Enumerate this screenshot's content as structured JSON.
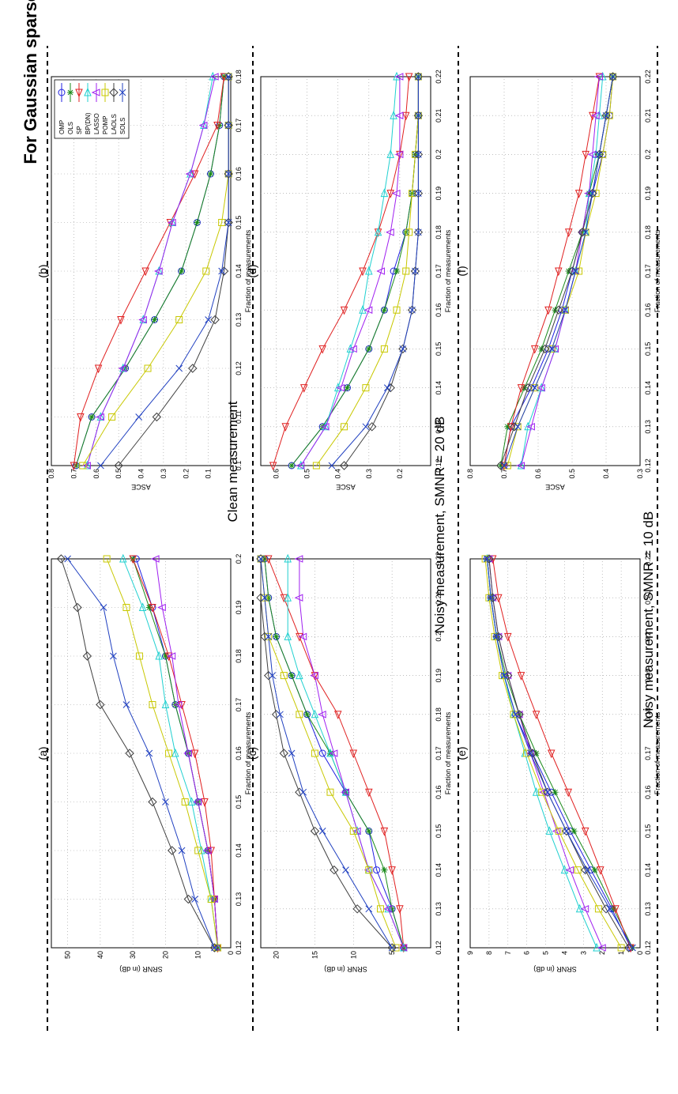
{
  "figure": {
    "title": "For Gaussian sparse signal",
    "row_labels": [
      "Clean measurement",
      "Noisy measurement, SMNR = 20 dB",
      "Noisy measurement, SMNR = 10 dB"
    ],
    "legend": [
      "OMP",
      "OLS",
      "SP",
      "BP(DN)",
      "LASSO",
      "POMP",
      "LAOLS",
      "SOLS"
    ]
  },
  "colors": {
    "OMP": "#2020e0",
    "OLS": "#1a8a1a",
    "SP": "#e02020",
    "BP(DN)": "#20d0d0",
    "LASSO": "#a020f0",
    "POMP": "#c8c800",
    "LAOLS": "#404040",
    "SOLS": "#2040c0"
  },
  "chart_data": [
    {
      "id": "a",
      "label": "(a)",
      "type": "line",
      "xlabel": "Fraction of measurements",
      "ylabel": "SRNR (in dB)",
      "x": [
        0.12,
        0.13,
        0.14,
        0.15,
        0.16,
        0.17,
        0.18,
        0.19,
        0.2
      ],
      "xticks": [
        "0.12",
        "0.13",
        "0.14",
        "0.15",
        "0.16",
        "0.17",
        "0.18",
        "0.19",
        "0.2"
      ],
      "ylim": [
        0,
        55
      ],
      "yticks": [
        "0",
        "10",
        "20",
        "30",
        "40",
        "50"
      ],
      "ytick_values": [
        0,
        10,
        20,
        30,
        40,
        50
      ],
      "series": [
        {
          "name": "OMP",
          "values": [
            4,
            5,
            7,
            10,
            13,
            17,
            20,
            24,
            29
          ]
        },
        {
          "name": "OLS",
          "values": [
            4,
            5,
            7,
            10,
            13,
            17,
            20,
            25,
            30
          ]
        },
        {
          "name": "SP",
          "values": [
            4,
            5,
            6,
            8,
            11,
            15,
            19,
            24,
            30
          ]
        },
        {
          "name": "BP(DN)",
          "values": [
            4,
            6,
            9,
            12,
            17,
            20,
            22,
            27,
            33
          ]
        },
        {
          "name": "LASSO",
          "values": [
            4,
            5,
            7,
            10,
            13,
            16,
            18,
            21,
            23
          ]
        },
        {
          "name": "POMP",
          "values": [
            4,
            6,
            10,
            14,
            19,
            24,
            28,
            32,
            38
          ]
        },
        {
          "name": "LAOLS",
          "values": [
            5,
            13,
            18,
            24,
            31,
            40,
            44,
            47,
            52
          ]
        },
        {
          "name": "SOLS",
          "values": [
            5,
            11,
            15,
            20,
            25,
            32,
            36,
            39,
            50
          ]
        }
      ]
    },
    {
      "id": "b",
      "label": "(b)",
      "type": "line",
      "xlabel": "Fraction of measurements",
      "ylabel": "ASCE",
      "x": [
        0.1,
        0.11,
        0.12,
        0.13,
        0.14,
        0.15,
        0.16,
        0.17,
        0.18
      ],
      "xticks": [
        "0.1",
        "0.11",
        "0.12",
        "0.13",
        "0.14",
        "0.15",
        "0.16",
        "0.17",
        "0.18"
      ],
      "ylim": [
        0,
        0.8
      ],
      "yticks": [
        "0.1",
        "0.2",
        "0.3",
        "0.4",
        "0.5",
        "0.6",
        "0.7",
        "0.8"
      ],
      "ytick_values": [
        0.1,
        0.2,
        0.3,
        0.4,
        0.5,
        0.6,
        0.7,
        0.8
      ],
      "series": [
        {
          "name": "OMP",
          "values": [
            0.69,
            0.62,
            0.47,
            0.34,
            0.22,
            0.15,
            0.09,
            0.05,
            0.03
          ]
        },
        {
          "name": "OLS",
          "values": [
            0.69,
            0.62,
            0.47,
            0.34,
            0.22,
            0.15,
            0.09,
            0.05,
            0.03
          ]
        },
        {
          "name": "SP",
          "values": [
            0.7,
            0.67,
            0.59,
            0.49,
            0.38,
            0.27,
            0.16,
            0.06,
            0.03
          ]
        },
        {
          "name": "BP(DN)",
          "values": [
            0.64,
            0.58,
            0.48,
            0.39,
            0.32,
            0.26,
            0.18,
            0.12,
            0.08
          ]
        },
        {
          "name": "LASSO",
          "values": [
            0.64,
            0.58,
            0.48,
            0.39,
            0.32,
            0.26,
            0.18,
            0.12,
            0.07
          ]
        },
        {
          "name": "POMP",
          "values": [
            0.66,
            0.53,
            0.37,
            0.23,
            0.11,
            0.04,
            0.01,
            0.01,
            0.01
          ]
        },
        {
          "name": "LAOLS",
          "values": [
            0.5,
            0.33,
            0.17,
            0.07,
            0.03,
            0.01,
            0.01,
            0.01,
            0.01
          ]
        },
        {
          "name": "SOLS",
          "values": [
            0.58,
            0.41,
            0.23,
            0.1,
            0.04,
            0.01,
            0.01,
            0.01,
            0.01
          ]
        }
      ]
    },
    {
      "id": "c",
      "label": "(c)",
      "type": "line",
      "xlabel": "Fraction of measurements",
      "ylabel": "SRNR (in dB)",
      "x": [
        0.12,
        0.13,
        0.14,
        0.15,
        0.16,
        0.17,
        0.18,
        0.19,
        0.2,
        0.21,
        0.22
      ],
      "xticks": [
        "0.12",
        "0.13",
        "0.14",
        "0.15",
        "0.16",
        "0.17",
        "0.18",
        "0.19",
        "0.2",
        "0.21",
        "0.22"
      ],
      "ylim": [
        0,
        22
      ],
      "yticks": [
        "5",
        "10",
        "15",
        "20"
      ],
      "ytick_values": [
        5,
        10,
        15,
        20
      ],
      "series": [
        {
          "name": "OMP",
          "values": [
            3.5,
            5,
            7,
            8,
            11,
            14,
            16,
            18,
            20,
            21,
            21.5
          ]
        },
        {
          "name": "OLS",
          "values": [
            3.5,
            5,
            6,
            8,
            11,
            13,
            16,
            18,
            20,
            21,
            21.5
          ]
        },
        {
          "name": "SP",
          "values": [
            3.5,
            4,
            5,
            6,
            8,
            10,
            12,
            15,
            17,
            19,
            21
          ]
        },
        {
          "name": "BP(DN)",
          "values": [
            3.5,
            5.5,
            8,
            9.5,
            11,
            13,
            15,
            17,
            18.5,
            18.5,
            18.5
          ]
        },
        {
          "name": "LASSO",
          "values": [
            3.5,
            5.5,
            8,
            9.5,
            11,
            12.5,
            14,
            15,
            16.5,
            17,
            17
          ]
        },
        {
          "name": "POMP",
          "values": [
            4.5,
            6.5,
            8,
            10,
            13,
            15,
            17,
            19,
            21,
            21.5,
            22
          ]
        },
        {
          "name": "LAOLS",
          "values": [
            5,
            9.5,
            12.5,
            15,
            17,
            19,
            20,
            21,
            21.5,
            22,
            22
          ]
        },
        {
          "name": "SOLS",
          "values": [
            5,
            8,
            11,
            14,
            16.5,
            18,
            19.5,
            20.5,
            21,
            21.5,
            22
          ]
        }
      ]
    },
    {
      "id": "d",
      "label": "(d)",
      "type": "line",
      "xlabel": "Fraction of measurements",
      "ylabel": "ASCE",
      "x": [
        0.12,
        0.13,
        0.14,
        0.15,
        0.16,
        0.17,
        0.18,
        0.19,
        0.2,
        0.21,
        0.22
      ],
      "xticks": [
        "0.12",
        "0.13",
        "0.14",
        "0.15",
        "0.16",
        "0.17",
        "0.18",
        "0.19",
        "0.2",
        "0.21",
        "0.22"
      ],
      "ylim": [
        0.1,
        0.65
      ],
      "yticks": [
        "0.2",
        "0.3",
        "0.4",
        "0.5",
        "0.6"
      ],
      "ytick_values": [
        0.2,
        0.3,
        0.4,
        0.5,
        0.6
      ],
      "series": [
        {
          "name": "OMP",
          "values": [
            0.55,
            0.45,
            0.37,
            0.3,
            0.25,
            0.22,
            0.18,
            0.16,
            0.15,
            0.14,
            0.14
          ]
        },
        {
          "name": "OLS",
          "values": [
            0.55,
            0.45,
            0.37,
            0.3,
            0.25,
            0.21,
            0.18,
            0.16,
            0.15,
            0.14,
            0.14
          ]
        },
        {
          "name": "SP",
          "values": [
            0.61,
            0.57,
            0.51,
            0.45,
            0.38,
            0.32,
            0.27,
            0.23,
            0.2,
            0.18,
            0.17
          ]
        },
        {
          "name": "BP(DN)",
          "values": [
            0.52,
            0.44,
            0.4,
            0.36,
            0.32,
            0.3,
            0.27,
            0.25,
            0.23,
            0.22,
            0.21
          ]
        },
        {
          "name": "LASSO",
          "values": [
            0.52,
            0.44,
            0.39,
            0.35,
            0.3,
            0.26,
            0.23,
            0.21,
            0.2,
            0.2,
            0.2
          ]
        },
        {
          "name": "POMP",
          "values": [
            0.47,
            0.38,
            0.31,
            0.25,
            0.21,
            0.18,
            0.17,
            0.16,
            0.15,
            0.14,
            0.14
          ]
        },
        {
          "name": "LAOLS",
          "values": [
            0.38,
            0.29,
            0.23,
            0.19,
            0.16,
            0.15,
            0.14,
            0.14,
            0.14,
            0.14,
            0.14
          ]
        },
        {
          "name": "SOLS",
          "values": [
            0.42,
            0.31,
            0.24,
            0.19,
            0.16,
            0.15,
            0.14,
            0.14,
            0.14,
            0.14,
            0.14
          ]
        }
      ]
    },
    {
      "id": "e",
      "label": "(e)",
      "type": "line",
      "xlabel": "Fraction of measurements",
      "ylabel": "SRNR (in dB)",
      "x": [
        0.12,
        0.13,
        0.14,
        0.15,
        0.16,
        0.17,
        0.18,
        0.19,
        0.2,
        0.21,
        0.22
      ],
      "xticks": [
        "0.12",
        "0.13",
        "0.14",
        "0.15",
        "0.16",
        "0.17",
        "0.18",
        "0.19",
        "0.2",
        "0.21",
        "0.22"
      ],
      "ylim": [
        0,
        9
      ],
      "yticks": [
        "0",
        "1",
        "2",
        "3",
        "4",
        "5",
        "6",
        "7",
        "8",
        "9"
      ],
      "ytick_values": [
        0,
        1,
        2,
        3,
        4,
        5,
        6,
        7,
        8,
        9
      ],
      "series": [
        {
          "name": "OMP",
          "values": [
            0.5,
            1.5,
            2.6,
            3.7,
            4.7,
            5.7,
            6.6,
            7.2,
            7.6,
            7.9,
            8.1
          ]
        },
        {
          "name": "OLS",
          "values": [
            0.4,
            1.4,
            2.4,
            3.5,
            4.5,
            5.5,
            6.4,
            7.1,
            7.6,
            7.9,
            8.1
          ]
        },
        {
          "name": "SP",
          "values": [
            0.5,
            1.3,
            2.1,
            2.9,
            3.8,
            4.7,
            5.5,
            6.3,
            7.0,
            7.5,
            7.8
          ]
        },
        {
          "name": "BP(DN)",
          "values": [
            2.3,
            3.2,
            4.0,
            4.8,
            5.5,
            6.1,
            6.7,
            7.2,
            7.6,
            7.9,
            8.1
          ]
        },
        {
          "name": "LASSO",
          "values": [
            2.0,
            2.9,
            3.7,
            4.4,
            5.1,
            5.8,
            6.4,
            7.0,
            7.5,
            7.8,
            8.0
          ]
        },
        {
          "name": "POMP",
          "values": [
            1.0,
            2.2,
            3.3,
            4.3,
            5.2,
            6.0,
            6.7,
            7.3,
            7.7,
            8.0,
            8.2
          ]
        },
        {
          "name": "LAOLS",
          "values": [
            0.6,
            1.8,
            2.9,
            3.9,
            4.9,
            5.7,
            6.4,
            7.0,
            7.5,
            7.8,
            8.0
          ]
        },
        {
          "name": "SOLS",
          "values": [
            0.4,
            1.6,
            2.8,
            3.9,
            4.9,
            5.8,
            6.6,
            7.2,
            7.6,
            7.9,
            8.1
          ]
        }
      ]
    },
    {
      "id": "f",
      "label": "(f)",
      "type": "line",
      "xlabel": "Fraction of measurements",
      "ylabel": "ASCE",
      "x": [
        0.12,
        0.13,
        0.14,
        0.15,
        0.16,
        0.17,
        0.18,
        0.19,
        0.2,
        0.21,
        0.22
      ],
      "xticks": [
        "0.12",
        "0.13",
        "0.14",
        "0.15",
        "0.16",
        "0.17",
        "0.18",
        "0.19",
        "0.2",
        "0.21",
        "0.22"
      ],
      "ylim": [
        0.3,
        0.8
      ],
      "yticks": [
        "0.3",
        "0.4",
        "0.5",
        "0.6",
        "0.7",
        "0.8"
      ],
      "ytick_values": [
        0.3,
        0.4,
        0.5,
        0.6,
        0.7,
        0.8
      ],
      "series": [
        {
          "name": "OMP",
          "values": [
            0.7,
            0.68,
            0.62,
            0.57,
            0.53,
            0.5,
            0.47,
            0.44,
            0.41,
            0.39,
            0.38
          ]
        },
        {
          "name": "OLS",
          "values": [
            0.71,
            0.69,
            0.64,
            0.59,
            0.55,
            0.51,
            0.47,
            0.45,
            0.42,
            0.4,
            0.38
          ]
        },
        {
          "name": "SP",
          "values": [
            0.7,
            0.68,
            0.65,
            0.61,
            0.57,
            0.54,
            0.51,
            0.48,
            0.46,
            0.44,
            0.42
          ]
        },
        {
          "name": "BP(DN)",
          "values": [
            0.65,
            0.63,
            0.59,
            0.55,
            0.52,
            0.49,
            0.46,
            0.45,
            0.43,
            0.42,
            0.41
          ]
        },
        {
          "name": "LASSO",
          "values": [
            0.65,
            0.62,
            0.59,
            0.55,
            0.52,
            0.49,
            0.47,
            0.45,
            0.44,
            0.43,
            0.42
          ]
        },
        {
          "name": "POMP",
          "values": [
            0.69,
            0.66,
            0.61,
            0.56,
            0.52,
            0.48,
            0.46,
            0.43,
            0.41,
            0.39,
            0.38
          ]
        },
        {
          "name": "LAOLS",
          "values": [
            0.71,
            0.67,
            0.63,
            0.58,
            0.54,
            0.5,
            0.47,
            0.44,
            0.42,
            0.4,
            0.38
          ]
        },
        {
          "name": "SOLS",
          "values": [
            0.7,
            0.66,
            0.61,
            0.56,
            0.52,
            0.49,
            0.46,
            0.44,
            0.42,
            0.4,
            0.38
          ]
        }
      ]
    }
  ]
}
